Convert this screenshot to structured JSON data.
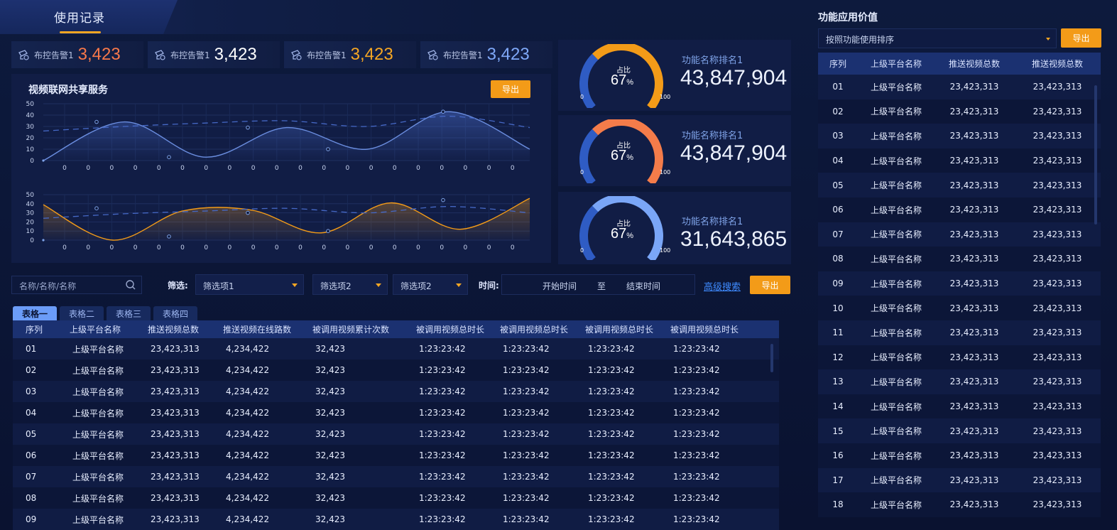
{
  "header": {
    "title": "使用记录"
  },
  "stats": [
    {
      "label": "布控告警1",
      "value": "3,423",
      "color": "#f7784a"
    },
    {
      "label": "布控告警1",
      "value": "3,423",
      "color": "#ffffff"
    },
    {
      "label": "布控告警1",
      "value": "3,423",
      "color": "#f5a623"
    },
    {
      "label": "布控告警1",
      "value": "3,423",
      "color": "#7fa8f8"
    }
  ],
  "chart_panel": {
    "title": "视频联网共享服务",
    "export_label": "导出"
  },
  "chart_data": [
    {
      "type": "line",
      "y_ticks": [
        "50",
        "40",
        "30",
        "20",
        "10",
        "0"
      ],
      "x_ticks": [
        "0",
        "0",
        "0",
        "0",
        "0",
        "0",
        "0",
        "0",
        "0",
        "0",
        "0",
        "0",
        "0",
        "0",
        "0",
        "0",
        "0",
        "0",
        "0",
        "0"
      ],
      "ylim": [
        0,
        50
      ],
      "series": [
        {
          "values": [
            0,
            34,
            3,
            29,
            10,
            43,
            10
          ]
        },
        {
          "values": [
            26,
            30,
            33,
            35,
            30,
            39,
            29
          ]
        }
      ],
      "markers": [
        34,
        3,
        29,
        10,
        43
      ],
      "color": "#6b8ee0"
    },
    {
      "type": "area",
      "y_ticks": [
        "50",
        "40",
        "30",
        "20",
        "10",
        "0"
      ],
      "x_ticks": [
        "0",
        "0",
        "0",
        "0",
        "0",
        "0",
        "0",
        "0",
        "0",
        "0",
        "0",
        "0",
        "0",
        "0",
        "0",
        "0",
        "0",
        "0",
        "0",
        "0"
      ],
      "ylim": [
        0,
        50
      ],
      "series": [
        {
          "values": [
            39,
            0,
            32,
            33,
            8,
            41,
            12,
            46
          ]
        },
        {
          "values": [
            24,
            29,
            32,
            35,
            30,
            37,
            30
          ]
        }
      ],
      "markers": [
        35,
        4,
        30,
        10,
        44
      ],
      "color": "#f39b18"
    }
  ],
  "gauges": [
    {
      "caption": "占比",
      "percent": "67",
      "unit": "%",
      "min": "0",
      "max": "100",
      "name": "功能名称排名1",
      "value": "43,847,904",
      "color": "#f39b18"
    },
    {
      "caption": "占比",
      "percent": "67",
      "unit": "%",
      "min": "0",
      "max": "100",
      "name": "功能名称排名1",
      "value": "43,847,904",
      "color": "#f47c4a"
    },
    {
      "caption": "占比",
      "percent": "67",
      "unit": "%",
      "min": "0",
      "max": "100",
      "name": "功能名称排名1",
      "value": "31,643,865",
      "color": "#7aa6f7"
    }
  ],
  "filters": {
    "search_placeholder": "名称/名称/名称",
    "filter_label": "筛选:",
    "select1": "筛选项1",
    "select2": "筛选项2",
    "select3": "筛选项2",
    "time_label": "时间:",
    "start": "开始时间",
    "to": "至",
    "end": "结束时间",
    "advanced": "高级搜索",
    "export": "导出"
  },
  "tabs": [
    "表格一",
    "表格二",
    "表格三",
    "表格四"
  ],
  "main_table": {
    "columns": [
      "序列",
      "上级平台名称",
      "推送视频总数",
      "推送视频在线路数",
      "被调用视频累计次数",
      "被调用视频总时长",
      "被调用视频总时长",
      "被调用视频总时长",
      "被调用视频总时长"
    ],
    "rows": [
      [
        "01",
        "上级平台名称",
        "23,423,313",
        "4,234,422",
        "32,423",
        "1:23:23:42",
        "1:23:23:42",
        "1:23:23:42",
        "1:23:23:42"
      ],
      [
        "02",
        "上级平台名称",
        "23,423,313",
        "4,234,422",
        "32,423",
        "1:23:23:42",
        "1:23:23:42",
        "1:23:23:42",
        "1:23:23:42"
      ],
      [
        "03",
        "上级平台名称",
        "23,423,313",
        "4,234,422",
        "32,423",
        "1:23:23:42",
        "1:23:23:42",
        "1:23:23:42",
        "1:23:23:42"
      ],
      [
        "04",
        "上级平台名称",
        "23,423,313",
        "4,234,422",
        "32,423",
        "1:23:23:42",
        "1:23:23:42",
        "1:23:23:42",
        "1:23:23:42"
      ],
      [
        "05",
        "上级平台名称",
        "23,423,313",
        "4,234,422",
        "32,423",
        "1:23:23:42",
        "1:23:23:42",
        "1:23:23:42",
        "1:23:23:42"
      ],
      [
        "06",
        "上级平台名称",
        "23,423,313",
        "4,234,422",
        "32,423",
        "1:23:23:42",
        "1:23:23:42",
        "1:23:23:42",
        "1:23:23:42"
      ],
      [
        "07",
        "上级平台名称",
        "23,423,313",
        "4,234,422",
        "32,423",
        "1:23:23:42",
        "1:23:23:42",
        "1:23:23:42",
        "1:23:23:42"
      ],
      [
        "08",
        "上级平台名称",
        "23,423,313",
        "4,234,422",
        "32,423",
        "1:23:23:42",
        "1:23:23:42",
        "1:23:23:42",
        "1:23:23:42"
      ],
      [
        "09",
        "上级平台名称",
        "23,423,313",
        "4,234,422",
        "32,423",
        "1:23:23:42",
        "1:23:23:42",
        "1:23:23:42",
        "1:23:23:42"
      ]
    ]
  },
  "side": {
    "title": "功能应用价值",
    "sort_select": "按照功能使用排序",
    "export": "导出",
    "columns": [
      "序列",
      "上级平台名称",
      "推送视频总数",
      "推送视频总数"
    ],
    "rows": [
      [
        "01",
        "上级平台名称",
        "23,423,313",
        "23,423,313"
      ],
      [
        "02",
        "上级平台名称",
        "23,423,313",
        "23,423,313"
      ],
      [
        "03",
        "上级平台名称",
        "23,423,313",
        "23,423,313"
      ],
      [
        "04",
        "上级平台名称",
        "23,423,313",
        "23,423,313"
      ],
      [
        "05",
        "上级平台名称",
        "23,423,313",
        "23,423,313"
      ],
      [
        "06",
        "上级平台名称",
        "23,423,313",
        "23,423,313"
      ],
      [
        "07",
        "上级平台名称",
        "23,423,313",
        "23,423,313"
      ],
      [
        "08",
        "上级平台名称",
        "23,423,313",
        "23,423,313"
      ],
      [
        "09",
        "上级平台名称",
        "23,423,313",
        "23,423,313"
      ],
      [
        "10",
        "上级平台名称",
        "23,423,313",
        "23,423,313"
      ],
      [
        "11",
        "上级平台名称",
        "23,423,313",
        "23,423,313"
      ],
      [
        "12",
        "上级平台名称",
        "23,423,313",
        "23,423,313"
      ],
      [
        "13",
        "上级平台名称",
        "23,423,313",
        "23,423,313"
      ],
      [
        "14",
        "上级平台名称",
        "23,423,313",
        "23,423,313"
      ],
      [
        "15",
        "上级平台名称",
        "23,423,313",
        "23,423,313"
      ],
      [
        "16",
        "上级平台名称",
        "23,423,313",
        "23,423,313"
      ],
      [
        "17",
        "上级平台名称",
        "23,423,313",
        "23,423,313"
      ],
      [
        "18",
        "上级平台名称",
        "23,423,313",
        "23,423,313"
      ]
    ]
  }
}
